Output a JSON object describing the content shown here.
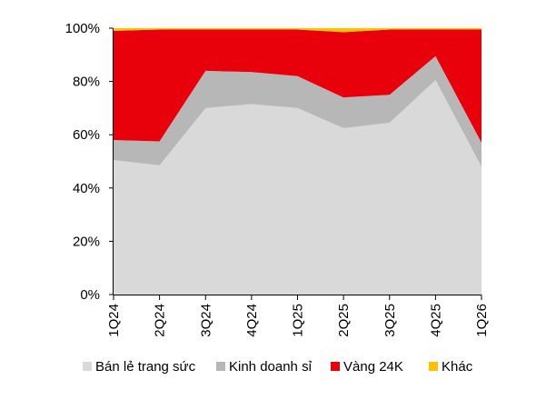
{
  "chart_data": {
    "type": "area",
    "stacked": true,
    "normalized": true,
    "categories": [
      "1Q24",
      "2Q24",
      "3Q24",
      "4Q24",
      "1Q25",
      "2Q25",
      "3Q25",
      "4Q25",
      "1Q26"
    ],
    "series": [
      {
        "name": "Bán lẻ trang sức",
        "color": "#d9d9d9",
        "values": [
          50.5,
          48.5,
          70,
          71.5,
          70,
          62.5,
          64.5,
          80.5,
          48
        ]
      },
      {
        "name": "Kinh doanh sỉ",
        "color": "#b7b7b7",
        "values": [
          7.5,
          9,
          14,
          12,
          12,
          11.5,
          10.5,
          9,
          9
        ]
      },
      {
        "name": "Vàng 24K",
        "color": "#e8000b",
        "values": [
          41,
          42,
          15.5,
          16,
          17.5,
          24.5,
          24.5,
          10,
          42.5
        ]
      },
      {
        "name": "Khác",
        "color": "#ffc000",
        "values": [
          1,
          0.5,
          0.5,
          0.5,
          0.5,
          1.5,
          0.5,
          0.5,
          0.5
        ]
      }
    ],
    "y_ticks": [
      "0%",
      "20%",
      "40%",
      "60%",
      "80%",
      "100%"
    ],
    "ylim": [
      0,
      100
    ],
    "grid": false,
    "legend": "bottom"
  }
}
